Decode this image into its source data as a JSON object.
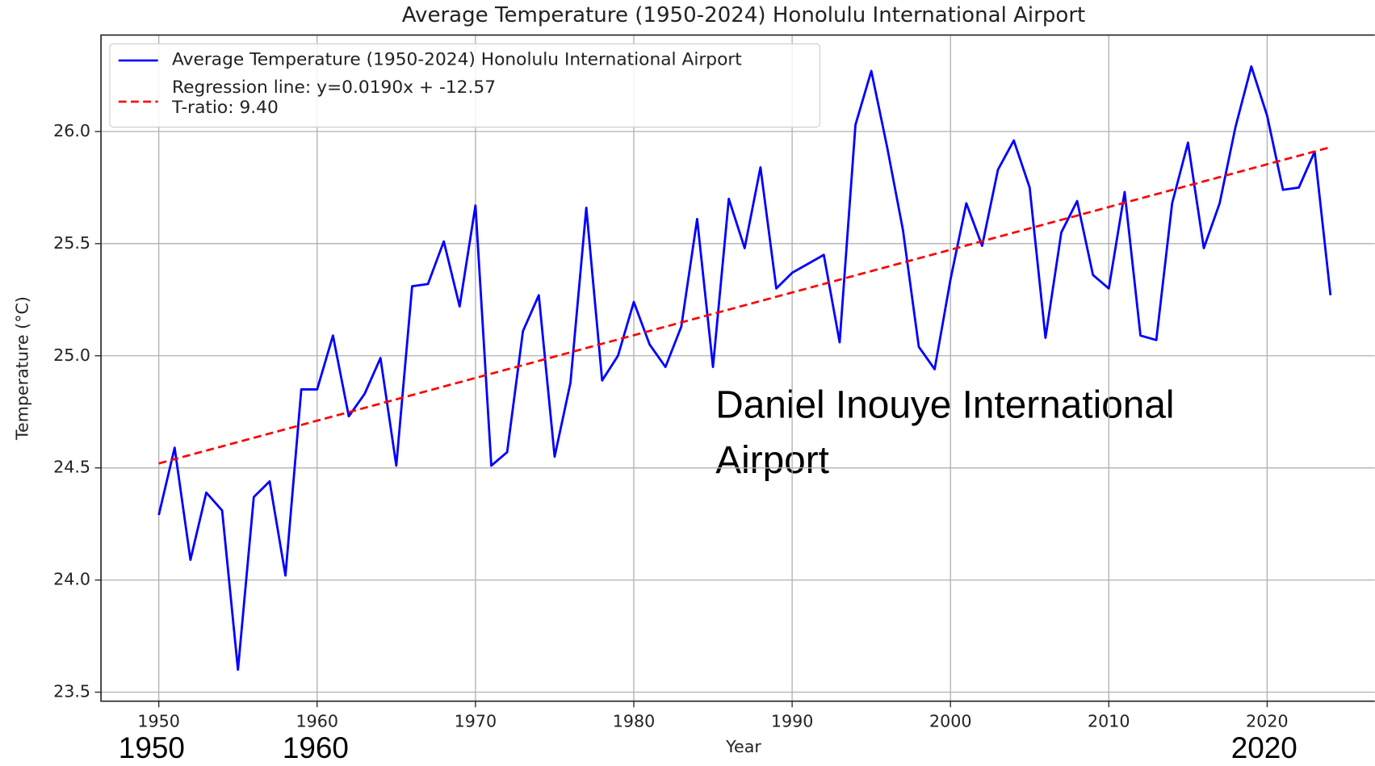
{
  "chart_data": {
    "type": "line",
    "title": "Average Temperature (1950-2024) Honolulu International Airport",
    "xlabel": "Year",
    "ylabel": "Temperature (°C)",
    "xlim": [
      1946.35,
      2026.8
    ],
    "ylim": [
      23.46,
      26.43
    ],
    "xticks": [
      1950,
      1960,
      1970,
      1980,
      1990,
      2000,
      2010,
      2020
    ],
    "yticks": [
      {
        "value": 23.5,
        "label": "23.5"
      },
      {
        "value": 24,
        "label": "24.0"
      },
      {
        "value": 24.5,
        "label": "24.5"
      },
      {
        "value": 25,
        "label": "25.0"
      },
      {
        "value": 25.5,
        "label": "25.5"
      },
      {
        "value": 26,
        "label": "26.0"
      }
    ],
    "grid": true,
    "legend": "upper left",
    "series": [
      {
        "name": "Average Temperature (1950-2024) Honolulu International Airport",
        "color": "#0000ff",
        "style": "solid",
        "x": [
          1950,
          1951,
          1952,
          1953,
          1954,
          1955,
          1956,
          1957,
          1958,
          1959,
          1960,
          1961,
          1962,
          1963,
          1964,
          1965,
          1966,
          1967,
          1968,
          1969,
          1970,
          1971,
          1972,
          1973,
          1974,
          1975,
          1976,
          1977,
          1978,
          1979,
          1980,
          1981,
          1982,
          1983,
          1984,
          1985,
          1986,
          1987,
          1988,
          1989,
          1990,
          1991,
          1992,
          1993,
          1994,
          1995,
          1996,
          1997,
          1998,
          1999,
          2000,
          2001,
          2002,
          2003,
          2004,
          2005,
          2006,
          2007,
          2008,
          2009,
          2010,
          2011,
          2012,
          2013,
          2014,
          2015,
          2016,
          2017,
          2018,
          2019,
          2020,
          2021,
          2022,
          2023,
          2024
        ],
        "values": [
          24.29,
          24.59,
          24.09,
          24.39,
          24.31,
          23.6,
          24.37,
          24.44,
          24.02,
          24.85,
          24.85,
          25.09,
          24.73,
          24.83,
          24.99,
          24.51,
          25.31,
          25.32,
          25.51,
          25.22,
          25.67,
          24.51,
          24.57,
          25.11,
          25.27,
          24.55,
          24.88,
          25.66,
          24.89,
          25.0,
          25.24,
          25.05,
          24.95,
          25.13,
          25.61,
          24.95,
          25.7,
          25.48,
          25.84,
          25.3,
          25.37,
          25.41,
          25.45,
          25.06,
          26.03,
          26.27,
          25.93,
          25.56,
          25.04,
          24.94,
          25.34,
          25.68,
          25.49,
          25.83,
          25.96,
          25.75,
          25.08,
          25.55,
          25.69,
          25.36,
          25.3,
          25.73,
          25.09,
          25.07,
          25.68,
          25.95,
          25.48,
          25.68,
          26.02,
          26.29,
          26.07,
          25.74,
          25.75,
          25.91,
          25.27
        ]
      },
      {
        "name": "Regression line: y=0.0190x + -12.57\nT-ratio: 9.40",
        "color": "#ff0000",
        "style": "dashed",
        "x": [
          1950,
          2024
        ],
        "values": [
          24.52,
          25.93
        ]
      }
    ],
    "annotation": [
      "Daniel Inouye International",
      "Airport"
    ],
    "overlay_labels": [
      "1950",
      "1960",
      "2020"
    ]
  }
}
